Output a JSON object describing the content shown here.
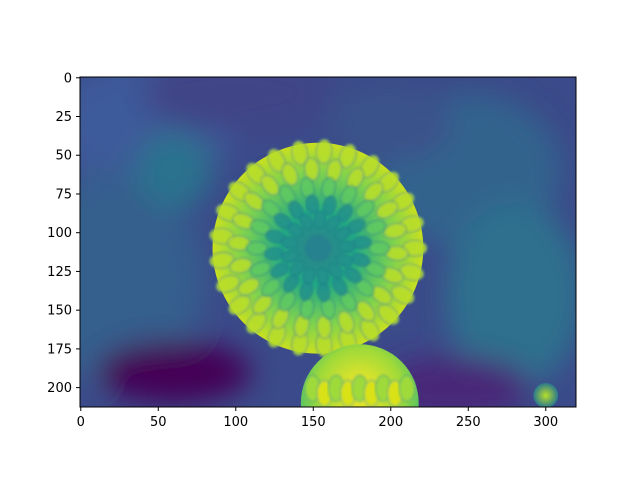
{
  "chart_data": {
    "type": "heatmap",
    "title": "",
    "xlabel": "",
    "ylabel": "",
    "colormap": "viridis",
    "image_width": 320,
    "image_height": 213,
    "xlim": [
      -0.5,
      319.5
    ],
    "ylim": [
      212.5,
      -0.5
    ],
    "y_axis_inverted": true,
    "x_ticks": [
      0,
      50,
      100,
      150,
      200,
      250,
      300
    ],
    "y_ticks": [
      0,
      25,
      50,
      75,
      100,
      125,
      150,
      175,
      200
    ],
    "grid": false,
    "legend": "none",
    "content": "grayscale photograph of a dahlia flower rendered with viridis colormap",
    "features": [
      {
        "name": "main-flower",
        "cx": 153,
        "cy": 110,
        "r": 68
      },
      {
        "name": "lower-flower",
        "cx": 180,
        "cy": 210,
        "r": 38
      },
      {
        "name": "bottom-right-bud",
        "cx": 300,
        "cy": 205,
        "r": 8
      }
    ]
  }
}
